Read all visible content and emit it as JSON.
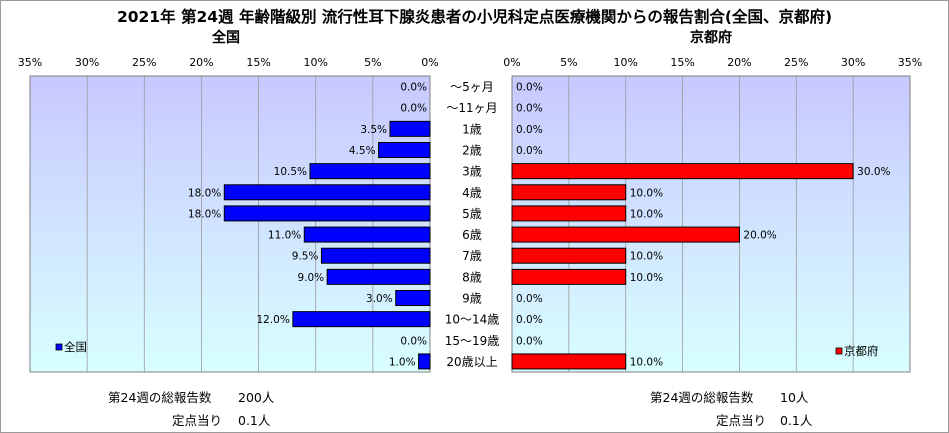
{
  "title": "2021年 第24週 年齢階級別 流行性耳下腺炎患者の小児科定点医療機関からの報告割合(全国、京都府)",
  "chart_data": [
    {
      "type": "bar",
      "title": "全国",
      "orientation": "horizontal",
      "direction": "right-to-left",
      "categories": [
        "～5ヶ月",
        "～11ヶ月",
        "1歳",
        "2歳",
        "3歳",
        "4歳",
        "5歳",
        "6歳",
        "7歳",
        "8歳",
        "9歳",
        "10～14歳",
        "15～19歳",
        "20歳以上"
      ],
      "values": [
        0.0,
        0.0,
        3.5,
        4.5,
        10.5,
        18.0,
        18.0,
        11.0,
        9.5,
        9.0,
        3.0,
        12.0,
        0.0,
        1.0
      ],
      "value_labels": [
        "0.0%",
        "0.0%",
        "3.5%",
        "4.5%",
        "10.5%",
        "18.0%",
        "18.0%",
        "11.0%",
        "9.5%",
        "9.0%",
        "3.0%",
        "12.0%",
        "0.0%",
        "1.0%"
      ],
      "xlim": [
        0,
        35
      ],
      "ticks": [
        "0%",
        "5%",
        "10%",
        "15%",
        "20%",
        "25%",
        "30%",
        "35%"
      ],
      "legend": "全国",
      "legend_position": "bottom-left",
      "grid": true,
      "color": "#0000ff"
    },
    {
      "type": "bar",
      "title": "京都府",
      "orientation": "horizontal",
      "direction": "left-to-right",
      "categories": [
        "～5ヶ月",
        "～11ヶ月",
        "1歳",
        "2歳",
        "3歳",
        "4歳",
        "5歳",
        "6歳",
        "7歳",
        "8歳",
        "9歳",
        "10～14歳",
        "15～19歳",
        "20歳以上"
      ],
      "values": [
        0.0,
        0.0,
        0.0,
        0.0,
        30.0,
        10.0,
        10.0,
        20.0,
        10.0,
        10.0,
        0.0,
        0.0,
        0.0,
        10.0
      ],
      "value_labels": [
        "0.0%",
        "0.0%",
        "0.0%",
        "0.0%",
        "30.0%",
        "10.0%",
        "10.0%",
        "20.0%",
        "10.0%",
        "10.0%",
        "0.0%",
        "0.0%",
        "0.0%",
        "10.0%"
      ],
      "xlim": [
        0,
        35
      ],
      "ticks": [
        "0%",
        "5%",
        "10%",
        "15%",
        "20%",
        "25%",
        "30%",
        "35%"
      ],
      "legend": "京都府",
      "legend_position": "bottom-right",
      "grid": true,
      "color": "#ff0000"
    }
  ],
  "colors": {
    "national_bar": "#0000ff",
    "kyoto_bar": "#ff0000",
    "plot_top": "#c8c8ff",
    "plot_bottom": "#d8ffff"
  },
  "footer": {
    "national": {
      "total_label": "第24週の総報告数",
      "total_value": "200人",
      "per_label": "定点当り",
      "per_value": "0.1人"
    },
    "kyoto": {
      "total_label": "第24週の総報告数",
      "total_value": "10人",
      "per_label": "定点当り",
      "per_value": "0.1人"
    }
  }
}
